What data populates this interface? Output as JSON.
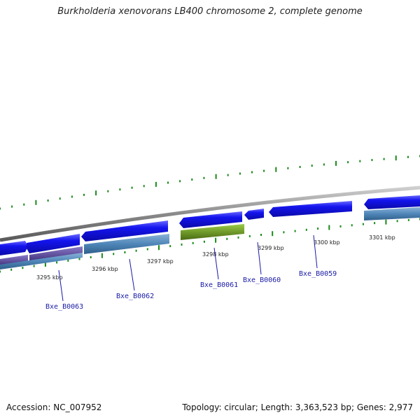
{
  "title": "Burkholderia xenovorans LB400 chromosome 2, complete genome",
  "accession": "Accession: NC_007952",
  "topology": "Topology: circular; Length: 3,363,523 bp; Genes: 2,977",
  "colors": {
    "backbone": "#8a8a8a",
    "cds_forward": "#1212e0",
    "cds_reverse": "#1212e0",
    "gene_steelblue": "#4f86b8",
    "gene_purple": "#5a4a9a",
    "gene_olive": "#6f9a2a",
    "tick": "#1a8a1a",
    "gene_label": "#1a1aa6"
  },
  "kbp_labels": [
    "3295 kbp",
    "3296 kbp",
    "3297 kbp",
    "3298 kbp",
    "3299 kbp",
    "3300 kbp",
    "3301 kbp"
  ],
  "gene_labels": [
    "Bxe_B0063",
    "Bxe_B0062",
    "Bxe_B0061",
    "Bxe_B0060",
    "Bxe_B0059"
  ]
}
